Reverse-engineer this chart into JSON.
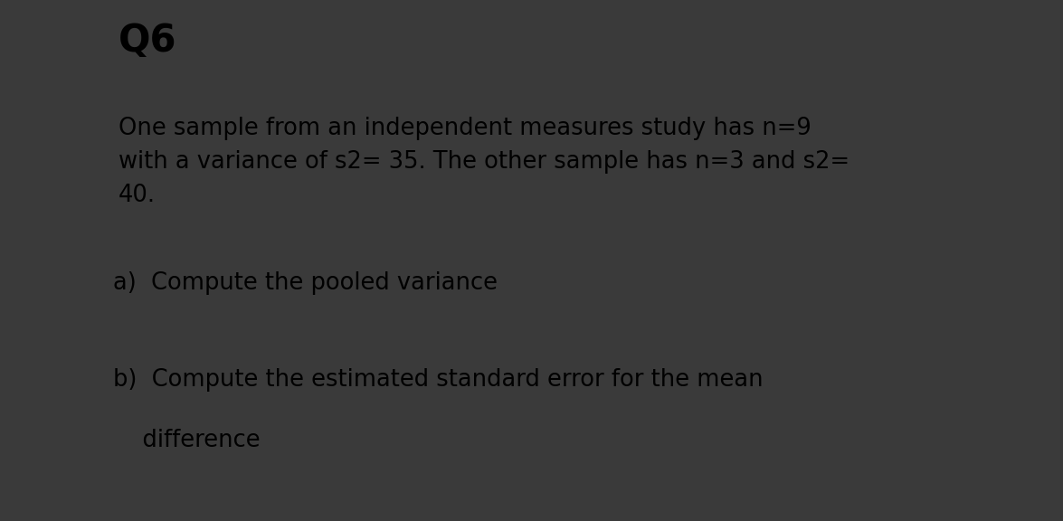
{
  "title": "Q6",
  "body_text": "One sample from an independent measures study has n=9\nwith a variance of s2= 35. The other sample has n=3 and s2=\n40.",
  "part_a": "a)  Compute the pooled variance",
  "part_b_line1": "b)  Compute the estimated standard error for the mean",
  "part_b_line2": "    difference",
  "bg_color": "#ffffff",
  "border_color": "#333333",
  "text_color": "#000000",
  "title_fontsize": 30,
  "body_fontsize": 18.5,
  "part_fontsize": 18.5,
  "outer_bg": "#3a3a3a"
}
